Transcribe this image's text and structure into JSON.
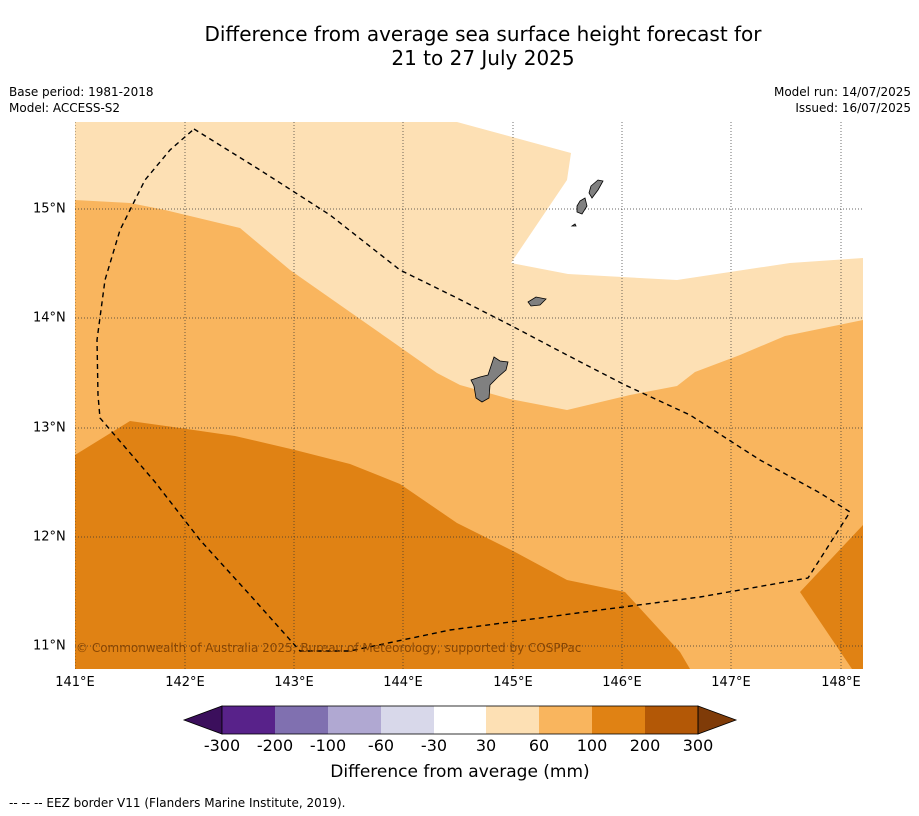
{
  "header": {
    "title_line1": "Difference from average sea surface height forecast for",
    "title_line2": "21 to 27 July 2025",
    "base_period": "Base period: 1981-2018",
    "model": "Model: ACCESS-S2",
    "model_run": "Model run: 14/07/2025",
    "issued": "Issued: 16/07/2025"
  },
  "map": {
    "x_ticks": [
      "141°E",
      "142°E",
      "143°E",
      "144°E",
      "145°E",
      "146°E",
      "147°E",
      "148°E"
    ],
    "y_ticks": [
      "15°N",
      "14°N",
      "13°N",
      "12°N",
      "11°N"
    ],
    "credit": "© Commonwealth of Australia 2025, Bureau of Meteorology, supported by COSPPac",
    "land_color": "#808080",
    "eez_border": "dashed"
  },
  "colorbar": {
    "title": "Difference from average (mm)",
    "labels": [
      "-300",
      "-200",
      "-100",
      "-60",
      "-30",
      "30",
      "60",
      "100",
      "200",
      "300"
    ],
    "colors": [
      "#3b0f5c",
      "#58228a",
      "#8070b0",
      "#b0a8d2",
      "#d8d8ea",
      "#ffffff",
      "#fde0b4",
      "#f9b55e",
      "#e08214",
      "#b35806",
      "#7f3b08"
    ]
  },
  "legend": {
    "eez_text": "--  --  -- EEZ border V11 (Flanders Marine Institute, 2019)."
  }
}
